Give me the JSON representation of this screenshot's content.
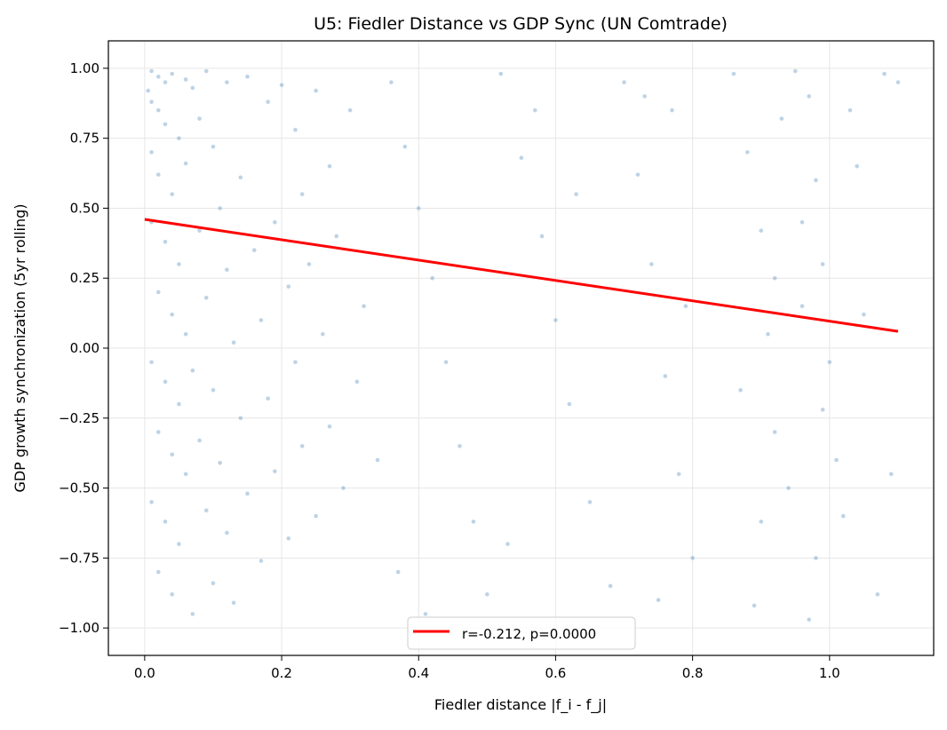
{
  "chart_data": {
    "type": "scatter",
    "title": "U5: Fiedler Distance vs GDP Sync (UN Comtrade)",
    "xlabel": "Fiedler distance |f_i - f_j|",
    "ylabel": "GDP growth synchronization (5yr rolling)",
    "xlim": [
      -0.053,
      1.152
    ],
    "ylim": [
      -1.098,
      1.098
    ],
    "x_ticks": [
      "0.0",
      "0.2",
      "0.4",
      "0.6",
      "0.8",
      "1.0"
    ],
    "x_tick_values": [
      0,
      0.2,
      0.4,
      0.6,
      0.8,
      1.0
    ],
    "y_ticks": [
      "1.00",
      "0.75",
      "0.50",
      "0.25",
      "0.00",
      "−0.25",
      "−0.50",
      "−0.75",
      "−1.00"
    ],
    "y_tick_values": [
      1,
      0.75,
      0.5,
      0.25,
      0,
      -0.25,
      -0.5,
      -0.75,
      -1
    ],
    "grid": true,
    "point_color": "#4682b4",
    "points_note_sample": true,
    "points": [
      [
        0.01,
        0.99
      ],
      [
        0.02,
        0.97
      ],
      [
        0.03,
        0.95
      ],
      [
        0.005,
        0.92
      ],
      [
        0.04,
        0.98
      ],
      [
        0.06,
        0.96
      ],
      [
        0.01,
        0.88
      ],
      [
        0.02,
        0.85
      ],
      [
        0.07,
        0.93
      ],
      [
        0.09,
        0.99
      ],
      [
        0.03,
        0.8
      ],
      [
        0.05,
        0.75
      ],
      [
        0.01,
        0.7
      ],
      [
        0.08,
        0.82
      ],
      [
        0.12,
        0.95
      ],
      [
        0.15,
        0.97
      ],
      [
        0.02,
        0.62
      ],
      [
        0.04,
        0.55
      ],
      [
        0.06,
        0.66
      ],
      [
        0.1,
        0.72
      ],
      [
        0.01,
        0.45
      ],
      [
        0.03,
        0.38
      ],
      [
        0.05,
        0.3
      ],
      [
        0.08,
        0.42
      ],
      [
        0.11,
        0.5
      ],
      [
        0.14,
        0.61
      ],
      [
        0.18,
        0.88
      ],
      [
        0.2,
        0.94
      ],
      [
        0.22,
        0.78
      ],
      [
        0.25,
        0.92
      ],
      [
        0.02,
        0.2
      ],
      [
        0.04,
        0.12
      ],
      [
        0.06,
        0.05
      ],
      [
        0.09,
        0.18
      ],
      [
        0.12,
        0.28
      ],
      [
        0.16,
        0.35
      ],
      [
        0.19,
        0.45
      ],
      [
        0.23,
        0.55
      ],
      [
        0.27,
        0.65
      ],
      [
        0.3,
        0.85
      ],
      [
        0.01,
        -0.05
      ],
      [
        0.03,
        -0.12
      ],
      [
        0.05,
        -0.2
      ],
      [
        0.07,
        -0.08
      ],
      [
        0.1,
        -0.15
      ],
      [
        0.13,
        0.02
      ],
      [
        0.17,
        0.1
      ],
      [
        0.21,
        0.22
      ],
      [
        0.24,
        0.3
      ],
      [
        0.28,
        0.4
      ],
      [
        0.02,
        -0.3
      ],
      [
        0.04,
        -0.38
      ],
      [
        0.06,
        -0.45
      ],
      [
        0.08,
        -0.33
      ],
      [
        0.11,
        -0.41
      ],
      [
        0.14,
        -0.25
      ],
      [
        0.18,
        -0.18
      ],
      [
        0.22,
        -0.05
      ],
      [
        0.26,
        0.05
      ],
      [
        0.32,
        0.15
      ],
      [
        0.01,
        -0.55
      ],
      [
        0.03,
        -0.62
      ],
      [
        0.05,
        -0.7
      ],
      [
        0.09,
        -0.58
      ],
      [
        0.12,
        -0.66
      ],
      [
        0.15,
        -0.52
      ],
      [
        0.19,
        -0.44
      ],
      [
        0.23,
        -0.35
      ],
      [
        0.27,
        -0.28
      ],
      [
        0.31,
        -0.12
      ],
      [
        0.02,
        -0.8
      ],
      [
        0.04,
        -0.88
      ],
      [
        0.07,
        -0.95
      ],
      [
        0.1,
        -0.84
      ],
      [
        0.13,
        -0.91
      ],
      [
        0.17,
        -0.76
      ],
      [
        0.21,
        -0.68
      ],
      [
        0.25,
        -0.6
      ],
      [
        0.29,
        -0.5
      ],
      [
        0.34,
        -0.4
      ],
      [
        0.36,
        0.95
      ],
      [
        0.38,
        0.72
      ],
      [
        0.4,
        0.5
      ],
      [
        0.42,
        0.25
      ],
      [
        0.44,
        -0.05
      ],
      [
        0.46,
        -0.35
      ],
      [
        0.48,
        -0.62
      ],
      [
        0.5,
        -0.88
      ],
      [
        0.37,
        -0.8
      ],
      [
        0.41,
        -0.95
      ],
      [
        0.52,
        0.98
      ],
      [
        0.55,
        0.68
      ],
      [
        0.58,
        0.4
      ],
      [
        0.6,
        0.1
      ],
      [
        0.62,
        -0.2
      ],
      [
        0.65,
        -0.55
      ],
      [
        0.68,
        -0.85
      ],
      [
        0.53,
        -0.7
      ],
      [
        0.57,
        0.85
      ],
      [
        0.63,
        0.55
      ],
      [
        0.7,
        0.95
      ],
      [
        0.72,
        0.62
      ],
      [
        0.74,
        0.3
      ],
      [
        0.76,
        -0.1
      ],
      [
        0.78,
        -0.45
      ],
      [
        0.8,
        -0.75
      ],
      [
        0.73,
        0.9
      ],
      [
        0.77,
        0.85
      ],
      [
        0.79,
        0.15
      ],
      [
        0.75,
        -0.9
      ],
      [
        0.86,
        0.98
      ],
      [
        0.88,
        0.7
      ],
      [
        0.9,
        0.42
      ],
      [
        0.91,
        0.05
      ],
      [
        0.92,
        -0.3
      ],
      [
        0.9,
        -0.62
      ],
      [
        0.89,
        -0.92
      ],
      [
        0.93,
        0.82
      ],
      [
        0.87,
        -0.15
      ],
      [
        0.92,
        0.25
      ],
      [
        0.95,
        0.99
      ],
      [
        0.97,
        0.9
      ],
      [
        0.98,
        0.6
      ],
      [
        0.99,
        0.3
      ],
      [
        1.0,
        -0.05
      ],
      [
        1.01,
        -0.4
      ],
      [
        0.98,
        -0.75
      ],
      [
        0.97,
        -0.97
      ],
      [
        1.03,
        0.85
      ],
      [
        1.02,
        -0.6
      ],
      [
        0.96,
        0.45
      ],
      [
        0.99,
        -0.22
      ],
      [
        1.05,
        0.12
      ],
      [
        1.07,
        -0.88
      ],
      [
        1.09,
        -0.45
      ],
      [
        1.1,
        0.95
      ],
      [
        1.08,
        0.98
      ],
      [
        1.04,
        0.65
      ],
      [
        0.94,
        -0.5
      ],
      [
        0.96,
        0.15
      ]
    ],
    "regression": {
      "label": "r=-0.212, p=0.0000",
      "x": [
        0.0,
        1.1
      ],
      "y": [
        0.46,
        0.06
      ],
      "color": "#ff0000"
    },
    "legend_placement": "lower center"
  }
}
